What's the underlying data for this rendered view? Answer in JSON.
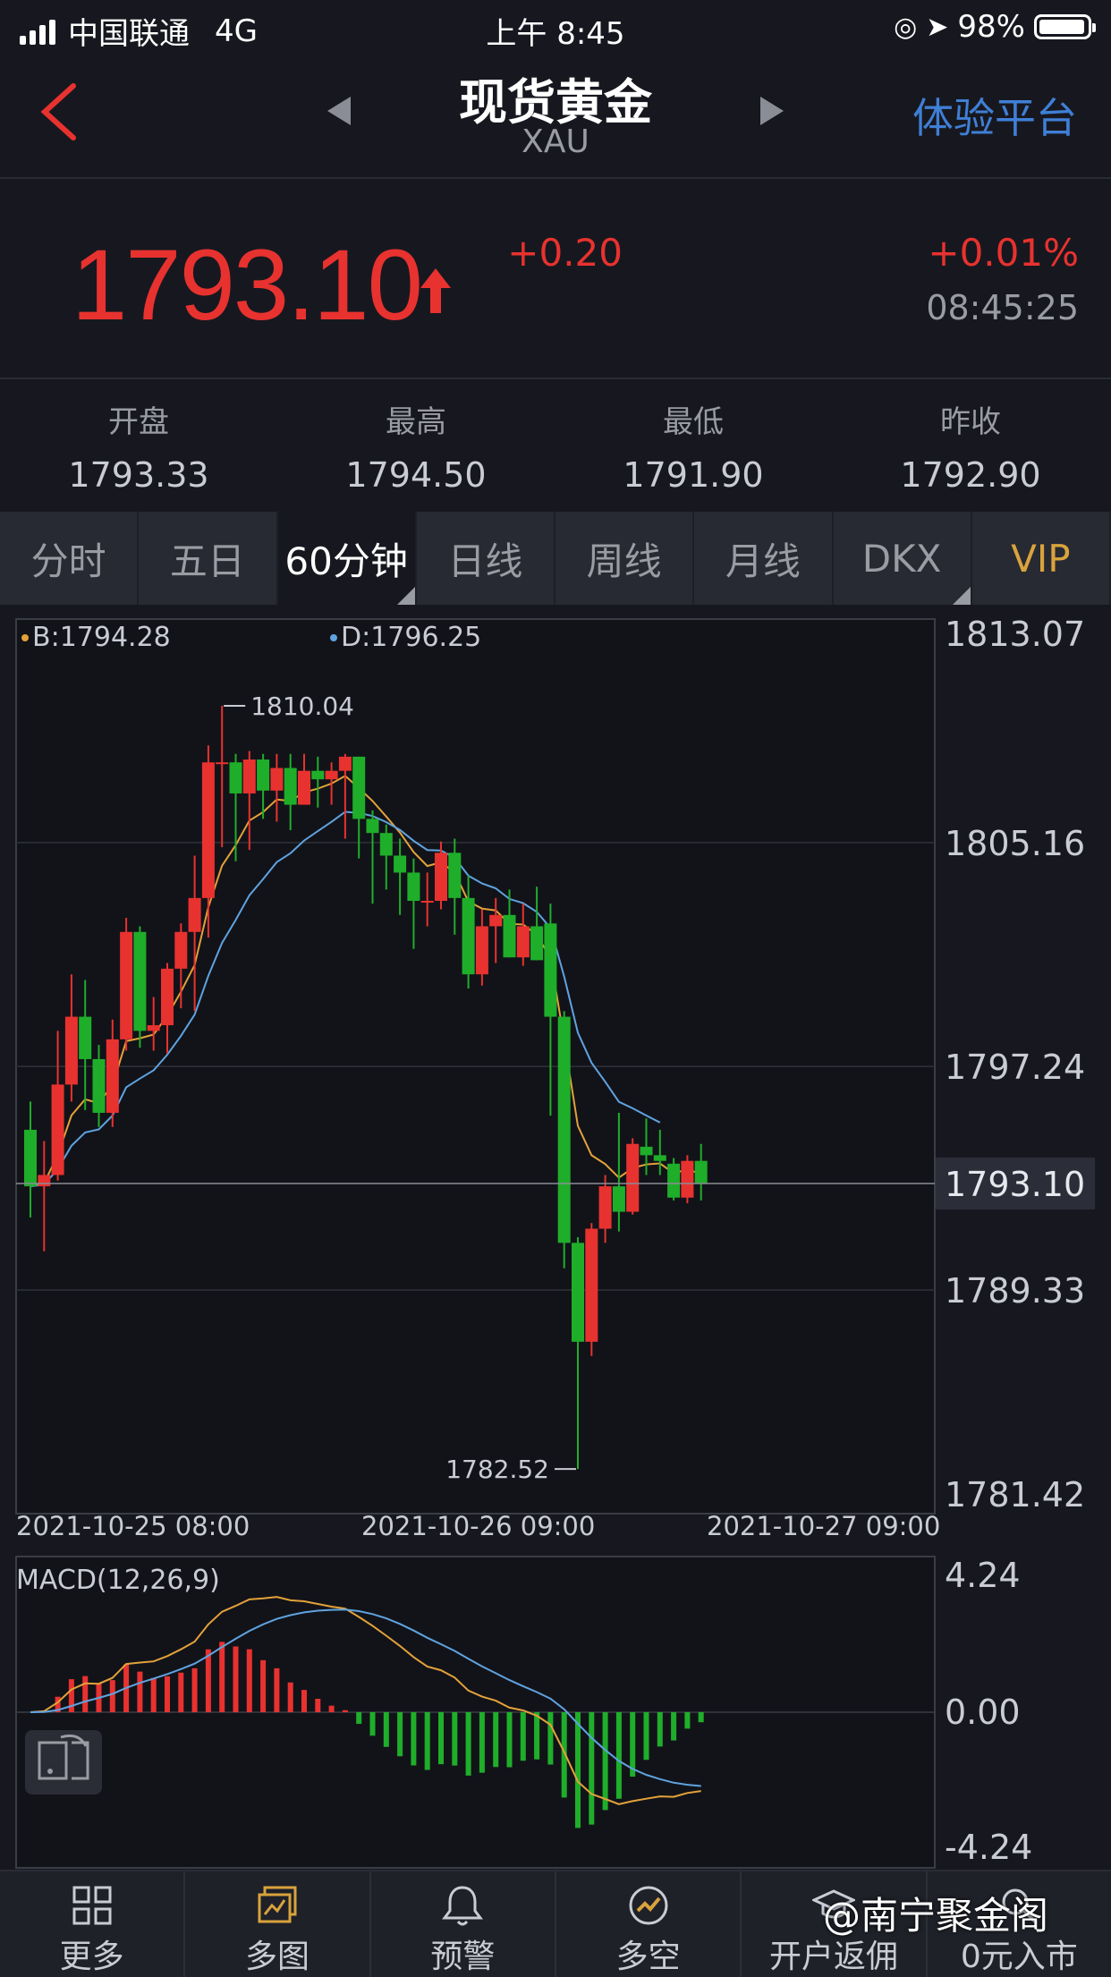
{
  "status_bar": {
    "carrier": "中国联通",
    "network": "4G",
    "time": "上午 8:45",
    "battery": "98%"
  },
  "nav": {
    "title": "现货黄金",
    "subtitle": "XAU",
    "right_link": "体验平台"
  },
  "quote": {
    "price": "1793.10",
    "change": "+0.20",
    "change_pct": "+0.01%",
    "time": "08:45:25"
  },
  "stats": [
    {
      "label": "开盘",
      "value": "1793.33"
    },
    {
      "label": "最高",
      "value": "1794.50"
    },
    {
      "label": "最低",
      "value": "1791.90"
    },
    {
      "label": "昨收",
      "value": "1792.90"
    }
  ],
  "tabs": [
    "分时",
    "五日",
    "60分钟",
    "日线",
    "周线",
    "月线",
    "DKX",
    "VIP"
  ],
  "colors": {
    "up": "#e8322f",
    "down": "#1fae2a",
    "ma_b": "#e3a23a",
    "ma_d": "#5fa3e0",
    "link": "#3f7fd6"
  },
  "chart_data": {
    "type": "candlestick",
    "legend": {
      "b": "B:1794.28",
      "d": "D:1796.25"
    },
    "y_ticks": [
      "1813.07",
      "1805.16",
      "1797.24",
      "1793.10",
      "1789.33",
      "1781.42"
    ],
    "y_values": [
      1813.07,
      1805.16,
      1797.24,
      1793.1,
      1789.33,
      1781.42
    ],
    "current_price": 1793.1,
    "high_label": "1810.04",
    "low_label": "1782.52",
    "x_labels": [
      "2021-10-25 08:00",
      "2021-10-26 09:00",
      "2021-10-27 09:00"
    ],
    "candles": [
      [
        1795.0,
        1793.0,
        1796.0,
        1791.9
      ],
      [
        1793.0,
        1793.4,
        1794.6,
        1790.7
      ],
      [
        1793.4,
        1796.6,
        1798.5,
        1793.2
      ],
      [
        1796.6,
        1799.0,
        1800.5,
        1796.0
      ],
      [
        1799.0,
        1797.5,
        1800.3,
        1795.7
      ],
      [
        1797.5,
        1795.6,
        1798.0,
        1795.1
      ],
      [
        1795.6,
        1798.2,
        1798.9,
        1795.1
      ],
      [
        1798.2,
        1802.0,
        1802.5,
        1797.8
      ],
      [
        1802.0,
        1798.5,
        1802.2,
        1797.9
      ],
      [
        1798.5,
        1798.7,
        1799.7,
        1797.8
      ],
      [
        1798.7,
        1800.7,
        1800.9,
        1797.7
      ],
      [
        1800.7,
        1802.0,
        1802.3,
        1799.3
      ],
      [
        1802.0,
        1803.2,
        1804.7,
        1799.2
      ],
      [
        1803.2,
        1808.0,
        1808.6,
        1801.8
      ],
      [
        1808.0,
        1808.0,
        1810.0,
        1805.0
      ],
      [
        1808.0,
        1806.9,
        1808.3,
        1804.5
      ],
      [
        1806.9,
        1808.1,
        1808.4,
        1804.9
      ],
      [
        1808.1,
        1807.0,
        1808.3,
        1806.0
      ],
      [
        1807.0,
        1807.8,
        1808.3,
        1805.9
      ],
      [
        1807.8,
        1806.5,
        1808.3,
        1805.6
      ],
      [
        1806.5,
        1807.7,
        1808.3,
        1806.8
      ],
      [
        1807.7,
        1807.4,
        1808.2,
        1806.4
      ],
      [
        1807.4,
        1807.7,
        1808.0,
        1806.5
      ],
      [
        1807.7,
        1808.2,
        1808.3,
        1805.3
      ],
      [
        1808.2,
        1806.0,
        1808.2,
        1804.6
      ],
      [
        1806.0,
        1805.5,
        1806.3,
        1803.0
      ],
      [
        1805.5,
        1804.7,
        1805.8,
        1803.5
      ],
      [
        1804.7,
        1804.1,
        1805.3,
        1802.6
      ],
      [
        1804.1,
        1803.1,
        1804.6,
        1801.4
      ],
      [
        1803.1,
        1803.1,
        1804.1,
        1802.2
      ],
      [
        1803.1,
        1804.8,
        1805.2,
        1802.8
      ],
      [
        1804.8,
        1803.2,
        1805.3,
        1801.9
      ],
      [
        1803.2,
        1800.5,
        1804.0,
        1800.0
      ],
      [
        1800.5,
        1802.2,
        1802.8,
        1800.1
      ],
      [
        1802.2,
        1802.6,
        1803.2,
        1800.9
      ],
      [
        1802.6,
        1801.1,
        1803.5,
        1801.1
      ],
      [
        1801.1,
        1802.2,
        1803.0,
        1800.8
      ],
      [
        1802.2,
        1801.0,
        1803.6,
        1801.0
      ],
      [
        1802.3,
        1799.0,
        1803.0,
        1795.5
      ],
      [
        1799.0,
        1791.0,
        1799.2,
        1790.1
      ],
      [
        1791.0,
        1787.5,
        1791.2,
        1783.0
      ],
      [
        1787.5,
        1791.5,
        1791.7,
        1787.0
      ],
      [
        1791.5,
        1793.0,
        1793.4,
        1791.0
      ],
      [
        1793.0,
        1792.1,
        1795.6,
        1791.4
      ],
      [
        1792.1,
        1794.5,
        1794.7,
        1792.0
      ],
      [
        1794.4,
        1794.1,
        1795.4,
        1793.4
      ],
      [
        1794.1,
        1793.9,
        1795.0,
        1793.4
      ],
      [
        1793.8,
        1792.6,
        1794.0,
        1792.5
      ],
      [
        1792.6,
        1793.9,
        1794.1,
        1792.4
      ],
      [
        1793.9,
        1793.1,
        1794.5,
        1792.5
      ]
    ],
    "macd": {
      "title": "MACD(12,26,9)",
      "y_ticks": [
        "4.24",
        "0.00",
        "-4.24"
      ]
    }
  },
  "bottom_bar": [
    {
      "label": "更多",
      "icon": "grid-icon"
    },
    {
      "label": "多图",
      "icon": "multi-chart-icon"
    },
    {
      "label": "预警",
      "icon": "bell-icon"
    },
    {
      "label": "多空",
      "icon": "bull-bear-icon"
    },
    {
      "label": "开户返佣",
      "icon": "graduation-icon"
    },
    {
      "label": "0元入市",
      "icon": "search-icon"
    }
  ],
  "watermark": "@南宁聚金阁"
}
